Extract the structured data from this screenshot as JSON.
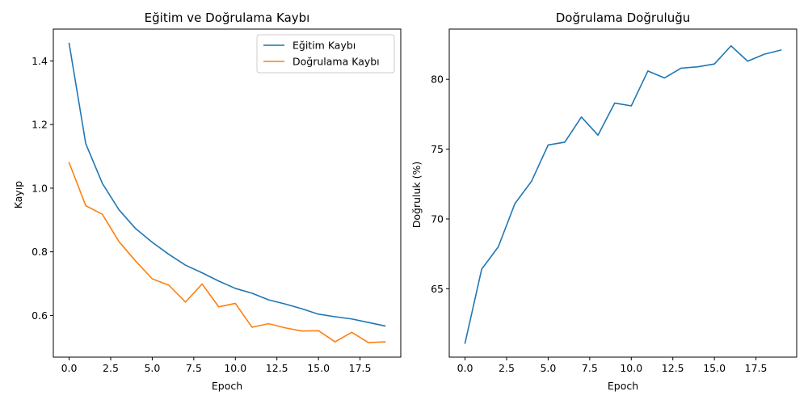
{
  "chart_data": [
    {
      "type": "line",
      "title": "Eğitim ve Doğrulama Kaybı",
      "xlabel": "Epoch",
      "ylabel": "Kayıp",
      "xlim": [
        -0.95,
        19.95
      ],
      "ylim": [
        0.469,
        1.5
      ],
      "xticks": [
        0,
        2.5,
        5,
        7.5,
        10,
        12.5,
        15,
        17.5
      ],
      "xtick_labels": [
        "0.0",
        "2.5",
        "5.0",
        "7.5",
        "10.0",
        "12.5",
        "15.0",
        "17.5"
      ],
      "yticks": [
        0.6,
        0.8,
        1.0,
        1.2,
        1.4
      ],
      "ytick_labels": [
        "0.6",
        "0.8",
        "1.0",
        "1.2",
        "1.4"
      ],
      "grid": false,
      "legend": "top-right",
      "x": [
        0,
        1,
        2,
        3,
        4,
        5,
        6,
        7,
        8,
        9,
        10,
        11,
        12,
        13,
        14,
        15,
        16,
        17,
        18,
        19
      ],
      "series": [
        {
          "name": "Eğitim Kaybı",
          "color": "#1f77b4",
          "values": [
            1.455,
            1.14,
            1.015,
            0.932,
            0.873,
            0.83,
            0.792,
            0.758,
            0.734,
            0.708,
            0.685,
            0.67,
            0.649,
            0.636,
            0.621,
            0.604,
            0.596,
            0.589,
            0.578,
            0.567
          ]
        },
        {
          "name": "Doğrulama Kaybı",
          "color": "#ff7f0e",
          "values": [
            1.08,
            0.945,
            0.918,
            0.832,
            0.771,
            0.715,
            0.695,
            0.642,
            0.699,
            0.627,
            0.638,
            0.563,
            0.574,
            0.561,
            0.551,
            0.552,
            0.517,
            0.547,
            0.515,
            0.517
          ]
        }
      ]
    },
    {
      "type": "line",
      "title": "Doğrulama Doğruluğu",
      "xlabel": "Epoch",
      "ylabel": "Doğruluk (%)",
      "xlim": [
        -0.95,
        19.95
      ],
      "ylim": [
        60.1,
        83.6
      ],
      "xticks": [
        0,
        2.5,
        5,
        7.5,
        10,
        12.5,
        15,
        17.5
      ],
      "xtick_labels": [
        "0.0",
        "2.5",
        "5.0",
        "7.5",
        "10.0",
        "12.5",
        "15.0",
        "17.5"
      ],
      "yticks": [
        65,
        70,
        75,
        80
      ],
      "ytick_labels": [
        "65",
        "70",
        "75",
        "80"
      ],
      "grid": false,
      "x": [
        0,
        1,
        2,
        3,
        4,
        5,
        6,
        7,
        8,
        9,
        10,
        11,
        12,
        13,
        14,
        15,
        16,
        17,
        18,
        19
      ],
      "series": [
        {
          "color": "#1f77b4",
          "values": [
            61.1,
            66.4,
            68.0,
            71.1,
            72.7,
            75.3,
            75.5,
            77.3,
            76.0,
            78.3,
            78.1,
            80.6,
            80.1,
            80.8,
            80.9,
            81.1,
            82.4,
            81.3,
            81.8,
            82.1
          ]
        }
      ]
    }
  ]
}
